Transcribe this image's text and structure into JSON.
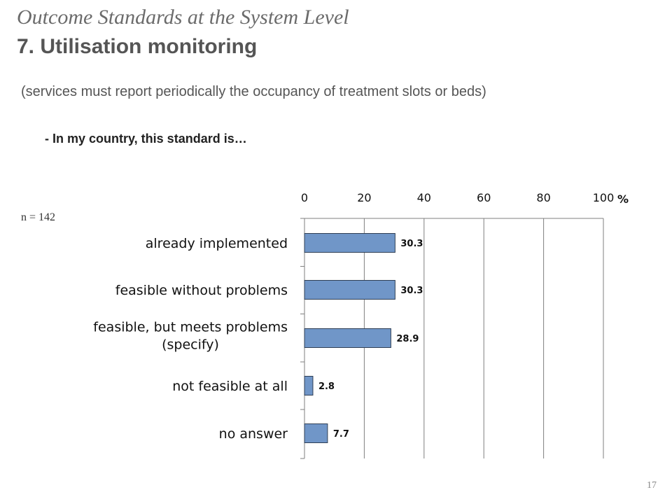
{
  "header": {
    "title_italic": "Outcome Standards at the System Level",
    "title_bold": "7. Utilisation monitoring",
    "subtitle": "(services must report periodically the occupancy of treatment slots or beds)",
    "question": "- In my country, this standard is…"
  },
  "sample_size": "n = 142",
  "page_number": "17",
  "colors": {
    "bar_fill": "#7096c8",
    "bar_stroke": "#2f3f55",
    "gridline": "#7f7f7f"
  },
  "chart_data": {
    "type": "bar",
    "orientation": "horizontal",
    "categories": [
      [
        "already implemented"
      ],
      [
        "feasible without problems"
      ],
      [
        "feasible, but meets problems",
        "(specify)"
      ],
      [
        "not feasible at all"
      ],
      [
        "no answer"
      ]
    ],
    "values": [
      30.3,
      30.3,
      28.9,
      2.8,
      7.7
    ],
    "data_labels": [
      "30.3",
      "30.3",
      "28.9",
      "2.8",
      "7.7"
    ],
    "xlim": [
      0,
      100
    ],
    "xticks": [
      0,
      20,
      40,
      60,
      80,
      100
    ],
    "x_axis_position": "top",
    "x_unit": "%",
    "grid": true
  }
}
